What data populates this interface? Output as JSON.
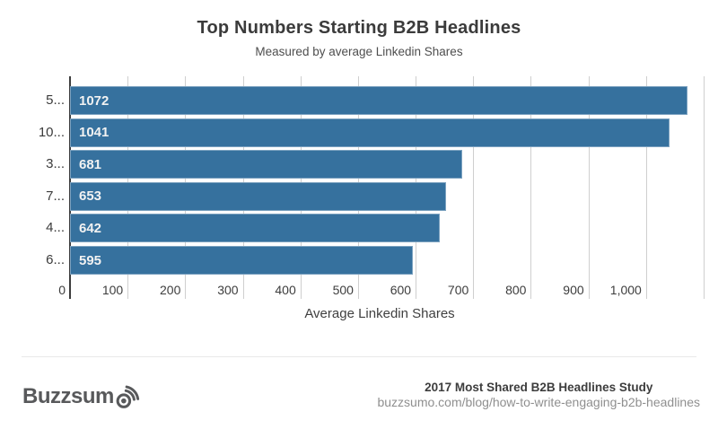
{
  "header": {
    "title": "Top Numbers Starting B2B Headlines",
    "subtitle": "Measured by average Linkedin Shares"
  },
  "chart_data": {
    "type": "bar",
    "orientation": "horizontal",
    "title": "Top Numbers Starting B2B Headlines",
    "subtitle": "Measured by average Linkedin Shares",
    "categories": [
      "5...",
      "10...",
      "3...",
      "7...",
      "4...",
      "6..."
    ],
    "values": [
      1072,
      1041,
      681,
      653,
      642,
      595
    ],
    "value_labels": [
      "1072",
      "1041",
      "681",
      "653",
      "642",
      "595"
    ],
    "xlabel": "Average Linkedin Shares",
    "ylabel": "",
    "xlim": [
      0,
      1100
    ],
    "x_tick_interval": 100,
    "x_tick_labels": [
      "0",
      "100",
      "200",
      "300",
      "400",
      "500",
      "600",
      "700",
      "800",
      "900",
      "1,000"
    ],
    "grid": "vertical",
    "legend": "none",
    "bar_color": "#36719E",
    "value_label_color": "#F2F2F2",
    "grid_color": "#CFCFCF",
    "axis_line_color": "#3D3D3D"
  },
  "footer": {
    "logo_text": "Buzzsum",
    "logo_icon": "sound-waves-target-icon",
    "study_title": "2017 Most Shared B2B Headlines Study",
    "study_url": "buzzsumo.com/blog/how-to-write-engaging-b2b-headlines"
  }
}
